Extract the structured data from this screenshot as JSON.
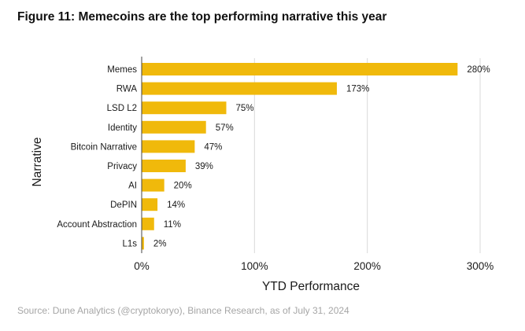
{
  "chart_data": {
    "type": "bar",
    "orientation": "horizontal",
    "title": "Figure 11: Memecoins are the top performing narrative this year",
    "xlabel": "YTD Performance",
    "ylabel": "Narrative",
    "categories": [
      "Memes",
      "RWA",
      "LSD L2",
      "Identity",
      "Bitcoin Narrative",
      "Privacy",
      "AI",
      "DePIN",
      "Account Abstraction",
      "L1s"
    ],
    "values": [
      280,
      173,
      75,
      57,
      47,
      39,
      20,
      14,
      11,
      2
    ],
    "data_labels": [
      "280%",
      "173%",
      "75%",
      "57%",
      "47%",
      "39%",
      "20%",
      "14%",
      "11%",
      "2%"
    ],
    "xlim": [
      0,
      300
    ],
    "xticks": [
      0,
      100,
      200,
      300
    ],
    "xtick_labels": [
      "0%",
      "100%",
      "200%",
      "300%"
    ],
    "grid": "vertical",
    "legend": "none",
    "bar_color": "#F0B90B"
  },
  "source": "Source: Dune Analytics (@cryptokoryo), Binance Research, as of July 31, 2024"
}
